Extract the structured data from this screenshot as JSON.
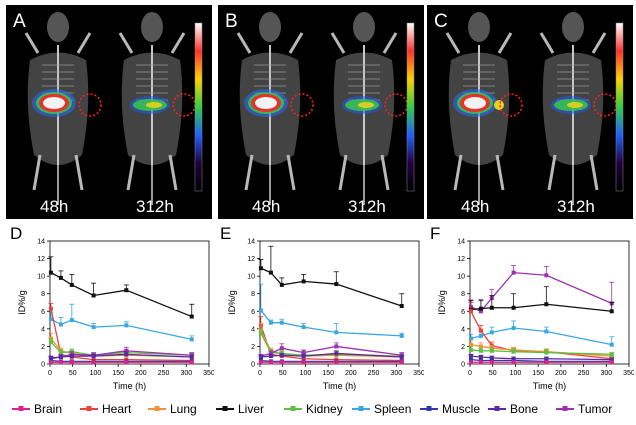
{
  "image_panels": [
    {
      "letter": "A",
      "times": [
        "48h",
        "312h"
      ],
      "variant": 0
    },
    {
      "letter": "B",
      "times": [
        "48h",
        "312h"
      ],
      "variant": 1
    },
    {
      "letter": "C",
      "times": [
        "48h",
        "312h"
      ],
      "variant": 2
    }
  ],
  "colors": {
    "Brain": "#e0208c",
    "Heart": "#e8443a",
    "Lung": "#f0923c",
    "Liver": "#111111",
    "Kidney": "#5cc040",
    "Spleen": "#3aa8e0",
    "Muscle": "#2f3aa8",
    "Bone": "#5a2aa0",
    "Tumor": "#9b30b0"
  },
  "legend": [
    "Brain",
    "Heart",
    "Lung",
    "Liver",
    "Kidney",
    "Spleen",
    "Muscle",
    "Bone",
    "Tumor"
  ],
  "chart_data": [
    {
      "panel": "D",
      "type": "line",
      "xlabel": "Time (h)",
      "ylabel": "ID%/g",
      "xlim": [
        0,
        350
      ],
      "ylim": [
        0,
        14
      ],
      "xticks": [
        0,
        50,
        100,
        150,
        200,
        250,
        300,
        350
      ],
      "yticks": [
        0,
        2,
        4,
        6,
        8,
        10,
        12,
        14
      ],
      "x": [
        2,
        24,
        48,
        96,
        168,
        312
      ],
      "series": [
        {
          "name": "Liver",
          "values": [
            10.4,
            9.8,
            9.0,
            7.8,
            8.4,
            5.4
          ],
          "err": [
            1.8,
            0.8,
            1.2,
            1.4,
            0.6,
            1.4
          ]
        },
        {
          "name": "Spleen",
          "values": [
            5.1,
            4.5,
            5.0,
            4.2,
            4.4,
            2.8
          ],
          "err": [
            0.8,
            0.8,
            1.8,
            0.4,
            0.4,
            0.4
          ]
        },
        {
          "name": "Heart",
          "values": [
            6.3,
            1.1,
            0.8,
            0.5,
            0.5,
            0.4
          ],
          "err": [
            0.6,
            0.3,
            0.2,
            0.1,
            0.1,
            0.1
          ]
        },
        {
          "name": "Lung",
          "values": [
            2.9,
            1.5,
            1.2,
            0.9,
            1.0,
            0.8
          ],
          "err": [
            0.6,
            0.3,
            0.2,
            0.2,
            0.2,
            0.2
          ]
        },
        {
          "name": "Kidney",
          "values": [
            2.5,
            1.3,
            1.4,
            1.0,
            1.3,
            1.0
          ],
          "err": [
            0.4,
            0.3,
            0.3,
            0.2,
            0.3,
            0.2
          ]
        },
        {
          "name": "Tumor",
          "values": [
            0.6,
            0.8,
            1.1,
            1.0,
            1.5,
            1.0
          ],
          "err": [
            0.2,
            0.3,
            0.3,
            0.3,
            0.4,
            0.3
          ]
        },
        {
          "name": "Bone",
          "values": [
            0.7,
            0.8,
            0.9,
            0.9,
            1.1,
            0.8
          ],
          "err": [
            0.2,
            0.2,
            0.2,
            0.2,
            0.3,
            0.2
          ]
        },
        {
          "name": "Muscle",
          "values": [
            0.4,
            0.3,
            0.3,
            0.3,
            0.3,
            0.3
          ],
          "err": [
            0.1,
            0.1,
            0.1,
            0.1,
            0.1,
            0.1
          ]
        },
        {
          "name": "Brain",
          "values": [
            0.2,
            0.2,
            0.2,
            0.2,
            0.2,
            0.2
          ],
          "err": [
            0.1,
            0.1,
            0.1,
            0.1,
            0.1,
            0.1
          ]
        }
      ]
    },
    {
      "panel": "E",
      "type": "line",
      "xlabel": "Time (h)",
      "ylabel": "ID%/g",
      "xlim": [
        0,
        350
      ],
      "ylim": [
        0,
        14
      ],
      "xticks": [
        0,
        50,
        100,
        150,
        200,
        250,
        300,
        350
      ],
      "yticks": [
        0,
        2,
        4,
        6,
        8,
        10,
        12,
        14
      ],
      "x": [
        2,
        24,
        48,
        96,
        168,
        312
      ],
      "series": [
        {
          "name": "Liver",
          "values": [
            10.9,
            10.4,
            9.0,
            9.4,
            9.1,
            6.6
          ],
          "err": [
            1.0,
            3.0,
            0.8,
            0.8,
            1.4,
            1.4
          ]
        },
        {
          "name": "Spleen",
          "values": [
            6.1,
            4.7,
            4.7,
            4.2,
            3.6,
            3.2
          ],
          "err": [
            3.0,
            0.3,
            0.4,
            0.4,
            1.0,
            0.3
          ]
        },
        {
          "name": "Heart",
          "values": [
            4.4,
            1.1,
            0.9,
            0.6,
            0.5,
            0.4
          ],
          "err": [
            1.0,
            0.3,
            0.2,
            0.1,
            0.1,
            0.1
          ]
        },
        {
          "name": "Lung",
          "values": [
            3.8,
            1.5,
            1.2,
            0.9,
            1.0,
            0.8
          ],
          "err": [
            0.8,
            0.3,
            0.2,
            0.2,
            0.2,
            0.2
          ]
        },
        {
          "name": "Kidney",
          "values": [
            3.5,
            1.3,
            1.2,
            1.0,
            1.1,
            0.9
          ],
          "err": [
            0.5,
            0.3,
            0.3,
            0.2,
            0.3,
            0.2
          ]
        },
        {
          "name": "Tumor",
          "values": [
            0.9,
            1.2,
            1.8,
            1.3,
            2.0,
            1.0
          ],
          "err": [
            0.2,
            0.3,
            0.5,
            0.3,
            0.4,
            0.3
          ]
        },
        {
          "name": "Bone",
          "values": [
            0.8,
            0.9,
            1.0,
            0.9,
            1.2,
            0.8
          ],
          "err": [
            0.2,
            0.2,
            0.2,
            0.2,
            0.3,
            0.2
          ]
        },
        {
          "name": "Muscle",
          "values": [
            0.4,
            0.3,
            0.3,
            0.3,
            0.3,
            0.3
          ],
          "err": [
            0.1,
            0.1,
            0.1,
            0.1,
            0.1,
            0.1
          ]
        },
        {
          "name": "Brain",
          "values": [
            0.2,
            0.2,
            0.2,
            0.2,
            0.2,
            0.2
          ],
          "err": [
            0.1,
            0.1,
            0.1,
            0.1,
            0.1,
            0.1
          ]
        }
      ]
    },
    {
      "panel": "F",
      "type": "line",
      "xlabel": "Time (h)",
      "ylabel": "ID%/g",
      "xlim": [
        0,
        350
      ],
      "ylim": [
        0,
        14
      ],
      "xticks": [
        0,
        50,
        100,
        150,
        200,
        250,
        300,
        350
      ],
      "yticks": [
        0,
        2,
        4,
        6,
        8,
        10,
        12,
        14
      ],
      "x": [
        2,
        24,
        48,
        96,
        168,
        312
      ],
      "series": [
        {
          "name": "Tumor",
          "values": [
            6.5,
            6.0,
            7.5,
            10.4,
            10.1,
            6.9
          ],
          "err": [
            0.8,
            1.2,
            1.0,
            0.8,
            1.0,
            2.4
          ]
        },
        {
          "name": "Liver",
          "values": [
            6.2,
            6.3,
            6.4,
            6.4,
            6.8,
            6.0
          ],
          "err": [
            1.0,
            1.0,
            1.4,
            1.6,
            2.0,
            1.0
          ]
        },
        {
          "name": "Spleen",
          "values": [
            2.9,
            3.2,
            3.6,
            4.1,
            3.7,
            2.2
          ],
          "err": [
            0.5,
            0.5,
            0.6,
            0.8,
            0.5,
            0.9
          ]
        },
        {
          "name": "Heart",
          "values": [
            6.0,
            3.8,
            2.1,
            1.5,
            1.4,
            0.6
          ],
          "err": [
            1.0,
            0.6,
            0.4,
            0.3,
            0.3,
            0.2
          ]
        },
        {
          "name": "Lung",
          "values": [
            2.2,
            2.0,
            1.8,
            1.6,
            1.4,
            0.9
          ],
          "err": [
            0.5,
            0.4,
            0.3,
            0.3,
            0.3,
            0.2
          ]
        },
        {
          "name": "Kidney",
          "values": [
            1.6,
            1.5,
            1.5,
            1.4,
            1.3,
            1.1
          ],
          "err": [
            0.4,
            0.3,
            0.3,
            0.3,
            0.3,
            0.2
          ]
        },
        {
          "name": "Bone",
          "values": [
            0.9,
            0.8,
            0.7,
            0.6,
            0.6,
            0.5
          ],
          "err": [
            0.2,
            0.2,
            0.2,
            0.2,
            0.2,
            0.2
          ]
        },
        {
          "name": "Muscle",
          "values": [
            0.5,
            0.4,
            0.4,
            0.4,
            0.3,
            0.3
          ],
          "err": [
            0.1,
            0.1,
            0.1,
            0.1,
            0.1,
            0.1
          ]
        },
        {
          "name": "Brain",
          "values": [
            0.2,
            0.2,
            0.2,
            0.2,
            0.2,
            0.2
          ],
          "err": [
            0.1,
            0.1,
            0.1,
            0.1,
            0.1,
            0.1
          ]
        }
      ]
    }
  ]
}
